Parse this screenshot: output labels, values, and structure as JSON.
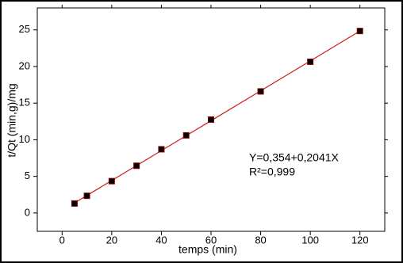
{
  "chart_data": {
    "type": "scatter",
    "x_label": "temps (min)",
    "y_label": "t/Qt (min,g)/mg",
    "x": [
      5,
      10,
      20,
      30,
      40,
      50,
      60,
      80,
      100,
      120
    ],
    "series": [
      {
        "name": null,
        "color": "#000000",
        "edge_color": "#8b0000",
        "values": [
          1.3,
          2.35,
          4.35,
          6.45,
          8.7,
          10.6,
          12.75,
          16.6,
          20.65,
          24.85
        ]
      }
    ],
    "fit_line": {
      "color": "#d11a1a",
      "x": [
        5,
        120
      ],
      "values": [
        1.375,
        24.846
      ]
    },
    "annotations": [
      "Y=0,354+0,2041X",
      "R²=0,999"
    ],
    "xlim": [
      -10,
      130
    ],
    "ylim": [
      -2.5,
      28
    ],
    "xticks": [
      0,
      20,
      40,
      60,
      80,
      100,
      120
    ],
    "yticks": [
      0,
      5,
      10,
      15,
      20,
      25
    ]
  }
}
